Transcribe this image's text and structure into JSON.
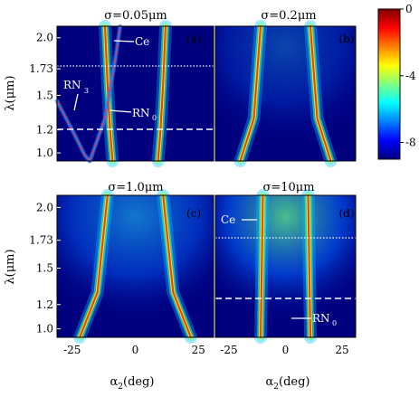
{
  "chart_data": [
    {
      "type": "heatmap",
      "panel": "(a)",
      "title": "σ=0.05μm",
      "xlabel": "",
      "ylabel": "λ(μm)",
      "xlim": [
        -31,
        31
      ],
      "ylim": [
        0.93,
        2.1
      ],
      "xticks": [],
      "yticks": [
        "2.0",
        "1.73",
        "1.5",
        "1.2",
        "1.0"
      ],
      "ytick_values": [
        2.0,
        1.73,
        1.5,
        1.2,
        1.0
      ],
      "resonance_curves": [
        {
          "name": "Ce",
          "x": [
            -9,
            -10,
            -11,
            -12
          ],
          "y": [
            0.93,
            1.2,
            1.6,
            2.1
          ]
        },
        {
          "name": "Ce",
          "x": [
            9,
            10,
            11,
            12
          ],
          "y": [
            0.93,
            1.2,
            1.6,
            2.1
          ]
        },
        {
          "name": "RN3",
          "x": [
            -31,
            -25,
            -20,
            -18
          ],
          "y": [
            1.45,
            1.2,
            0.98,
            0.93
          ]
        },
        {
          "name": "RN0",
          "x": [
            -18,
            -12,
            -8,
            -6
          ],
          "y": [
            0.93,
            1.3,
            1.8,
            2.1
          ]
        }
      ],
      "hlines": [
        {
          "y": 1.73,
          "style": "dotted"
        },
        {
          "y": 1.2,
          "style": "dashed"
        }
      ],
      "annotations": [
        "Ce",
        "RN",
        "3",
        "RN",
        "0"
      ]
    },
    {
      "type": "heatmap",
      "panel": "(b)",
      "title": "σ=0.2μm",
      "xlim": [
        -31,
        31
      ],
      "ylim": [
        0.93,
        2.1
      ],
      "resonance_curves": [
        {
          "name": "",
          "x": [
            -20,
            -14,
            -11
          ],
          "y": [
            0.93,
            1.3,
            2.1
          ]
        },
        {
          "name": "",
          "x": [
            20,
            14,
            11
          ],
          "y": [
            0.93,
            1.3,
            2.1
          ]
        }
      ]
    },
    {
      "type": "heatmap",
      "panel": "(c)",
      "title": "σ=1.0μm",
      "xlabel": "α2(deg)",
      "ylabel": "λ(μm)",
      "xlim": [
        -31,
        31
      ],
      "ylim": [
        0.93,
        2.1
      ],
      "xticks": [
        "-25",
        "0",
        "25"
      ],
      "xtick_values": [
        -25,
        0,
        25
      ],
      "yticks": [
        "2.0",
        "1.73",
        "1.5",
        "1.2",
        "1.0"
      ],
      "ytick_values": [
        2.0,
        1.73,
        1.5,
        1.2,
        1.0
      ],
      "resonance_curves": [
        {
          "name": "",
          "x": [
            -22,
            -15,
            -11
          ],
          "y": [
            0.93,
            1.3,
            2.1
          ]
        },
        {
          "name": "",
          "x": [
            22,
            15,
            11
          ],
          "y": [
            0.93,
            1.3,
            2.1
          ]
        }
      ]
    },
    {
      "type": "heatmap",
      "panel": "(d)",
      "title": "σ=10μm",
      "xlabel": "α2(deg)",
      "xlim": [
        -31,
        31
      ],
      "ylim": [
        0.93,
        2.1
      ],
      "xticks": [
        "-25",
        "0",
        "25"
      ],
      "xtick_values": [
        -25,
        0,
        25
      ],
      "resonance_curves": [
        {
          "name": "Ce",
          "x": [
            -11,
            -10.5,
            -10
          ],
          "y": [
            0.93,
            1.5,
            2.1
          ]
        },
        {
          "name": "Ce",
          "x": [
            11,
            10.5,
            10
          ],
          "y": [
            0.93,
            1.5,
            2.1
          ]
        }
      ],
      "hlines": [
        {
          "y": 1.73,
          "style": "dotted"
        },
        {
          "y": 1.2,
          "style": "dashed"
        }
      ],
      "annotations": [
        "Ce",
        "RN",
        "0"
      ]
    }
  ],
  "colorbar": {
    "range": [
      -9,
      0
    ],
    "ticks": [
      "0",
      "-4",
      "-8"
    ],
    "tick_values": [
      0,
      -4,
      -8
    ],
    "colors": [
      "#00007f",
      "#0000ff",
      "#0080ff",
      "#00ffff",
      "#80ff80",
      "#ffff00",
      "#ff8000",
      "#ff0000",
      "#7f0000"
    ]
  },
  "colors": {
    "background": "#00007f",
    "hot": "#7f0000",
    "dashed_red": "#ff3030",
    "label_white": "#ffffff"
  }
}
